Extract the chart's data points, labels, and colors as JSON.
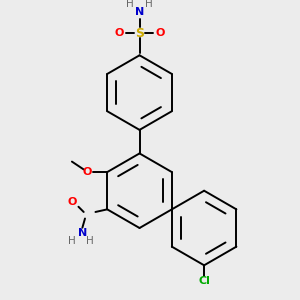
{
  "bg_color": "#ececec",
  "bond_color": "#000000",
  "colors": {
    "N": "#0000cc",
    "O": "#ff0000",
    "S": "#ccaa00",
    "Cl": "#00aa00",
    "C": "#000000",
    "H": "#666666"
  },
  "ring_r": 0.3,
  "lw": 1.4
}
